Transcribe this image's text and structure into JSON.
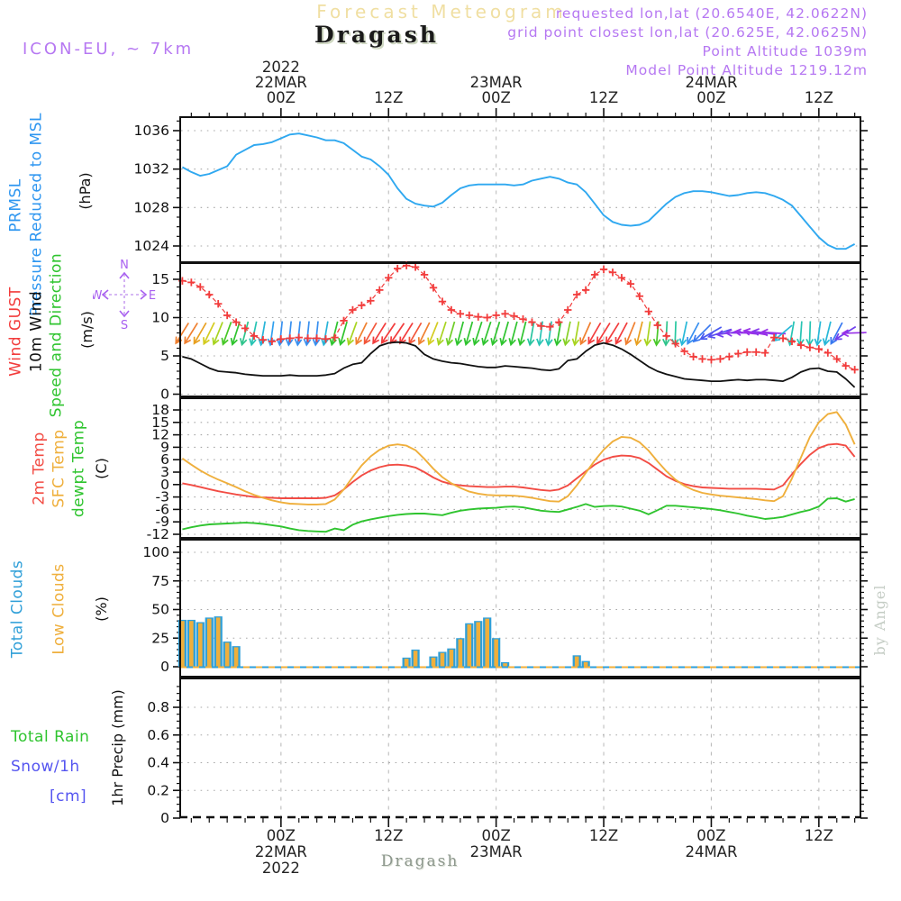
{
  "header": {
    "watermark_title": "Forecast Meteogram",
    "station": "Dragash",
    "model": "ICON-EU, ~ 7km",
    "meta_lines": [
      "requested lon,lat (20.6540E, 42.0622N)",
      "grid point closest lon,lat (20.625E, 42.0625N)",
      "Point Altitude 1039m",
      "Model Point Altitude 1219.12m"
    ]
  },
  "footer": {
    "station": "Dragash",
    "credit": "by Angel"
  },
  "compass": {
    "n": "N",
    "s": "S",
    "w": "W",
    "e": "E"
  },
  "colors": {
    "pressure_line": "#2FA8F0",
    "label_blue": "#2E96F0",
    "gust_red": "#F23C3C",
    "wind_black": "#111111",
    "direction_green": "#2FC42F",
    "temp_red": "#F24C44",
    "sfc_orange": "#EFAF3C",
    "dewpt_green": "#2FC42F",
    "cloud_blue": "#2F9FD8",
    "cloud_orange": "#EFAF3C",
    "rain_green": "#2FC42F",
    "snow_blue": "#5555F0",
    "header_purple": "#B678F2",
    "compass_purple": "#A860F0",
    "watermark_wheat": "#F0DFA2",
    "grid_gray": "#A8A8A8"
  },
  "time_axis": {
    "hours": 76,
    "minor_step_hours": 2,
    "major_ticks": [
      {
        "t": 11,
        "top": [
          "2022",
          "22MAR",
          "00Z"
        ],
        "bottom": [
          "00Z",
          "22MAR",
          "2022"
        ]
      },
      {
        "t": 23,
        "top": [
          "12Z"
        ],
        "bottom": [
          "12Z"
        ]
      },
      {
        "t": 35,
        "top": [
          "23MAR",
          "00Z"
        ],
        "bottom": [
          "00Z",
          "23MAR"
        ]
      },
      {
        "t": 47,
        "top": [
          "12Z"
        ],
        "bottom": [
          "12Z"
        ]
      },
      {
        "t": 59,
        "top": [
          "24MAR",
          "00Z"
        ],
        "bottom": [
          "00Z",
          "24MAR"
        ]
      },
      {
        "t": 71,
        "top": [
          "12Z"
        ],
        "bottom": [
          "12Z"
        ]
      }
    ]
  },
  "chart_data": [
    {
      "id": "pressure",
      "type": "line",
      "ylabel": "(hPa)",
      "left_labels": [
        {
          "text": "PRMSL",
          "color": "#2E96F0"
        },
        {
          "text": "Pressure Reduced to MSL",
          "color": "#2E96F0"
        }
      ],
      "yticks": [
        1024,
        1028,
        1032,
        1036
      ],
      "ylim": [
        1022.3,
        1037.4
      ],
      "grid": true,
      "series": [
        {
          "name": "PRMSL",
          "color": "#2FA8F0",
          "values": [
            1032.2,
            1031.7,
            1031.3,
            1031.5,
            1031.9,
            1032.3,
            1033.5,
            1034.0,
            1034.5,
            1034.6,
            1034.8,
            1035.2,
            1035.6,
            1035.7,
            1035.5,
            1035.3,
            1035.0,
            1035.0,
            1034.7,
            1034.0,
            1033.3,
            1033.0,
            1032.3,
            1031.4,
            1030.0,
            1028.9,
            1028.4,
            1028.2,
            1028.1,
            1028.5,
            1029.3,
            1030.0,
            1030.3,
            1030.4,
            1030.4,
            1030.4,
            1030.4,
            1030.3,
            1030.4,
            1030.8,
            1031.0,
            1031.2,
            1031.0,
            1030.6,
            1030.4,
            1029.6,
            1028.4,
            1027.2,
            1026.5,
            1026.2,
            1026.1,
            1026.2,
            1026.6,
            1027.5,
            1028.4,
            1029.1,
            1029.5,
            1029.7,
            1029.7,
            1029.6,
            1029.4,
            1029.2,
            1029.3,
            1029.5,
            1029.6,
            1029.5,
            1029.2,
            1028.8,
            1028.2,
            1027.1,
            1026.0,
            1024.9,
            1024.1,
            1023.7,
            1023.7,
            1024.2
          ]
        }
      ]
    },
    {
      "id": "wind",
      "type": "line-markers-arrows",
      "ylabel": "(m/s)",
      "left_labels": [
        {
          "text": "Wind GUST",
          "color": "#F23C3C"
        },
        {
          "text": "10m Wind",
          "color": "#111111"
        },
        {
          "text": "Speed and Direction",
          "color": "#2FC42F"
        }
      ],
      "yticks": [
        0,
        5,
        10,
        15
      ],
      "ylim": [
        -0.4,
        17.0
      ],
      "grid": true,
      "series": [
        {
          "name": "Wind GUST",
          "color": "#F23C3C",
          "marker": "plus",
          "values": [
            14.8,
            14.6,
            14.0,
            13.0,
            11.8,
            10.3,
            9.4,
            8.6,
            7.6,
            7.1,
            6.9,
            7.2,
            7.3,
            7.4,
            7.3,
            7.3,
            7.2,
            7.4,
            9.6,
            11.0,
            11.6,
            12.2,
            13.6,
            15.2,
            16.4,
            16.8,
            16.6,
            15.6,
            13.9,
            12.1,
            11.0,
            10.5,
            10.3,
            10.1,
            10.0,
            10.3,
            10.5,
            10.2,
            9.8,
            9.4,
            8.9,
            8.8,
            9.4,
            11.0,
            13.0,
            13.6,
            15.6,
            16.3,
            15.9,
            15.2,
            14.4,
            12.8,
            10.8,
            9.0,
            7.6,
            6.6,
            5.6,
            4.9,
            4.6,
            4.5,
            4.6,
            4.9,
            5.3,
            5.5,
            5.5,
            5.4,
            7.4,
            7.3,
            6.9,
            6.4,
            6.1,
            5.9,
            5.4,
            4.6,
            3.7,
            3.2
          ]
        },
        {
          "name": "10m Wind",
          "color": "#111111",
          "values": [
            4.9,
            4.6,
            4.0,
            3.4,
            3.0,
            2.9,
            2.8,
            2.6,
            2.5,
            2.4,
            2.4,
            2.4,
            2.5,
            2.4,
            2.4,
            2.4,
            2.5,
            2.7,
            3.4,
            3.9,
            4.1,
            5.3,
            6.3,
            6.7,
            6.8,
            6.7,
            6.3,
            5.2,
            4.6,
            4.3,
            4.1,
            4.0,
            3.8,
            3.6,
            3.5,
            3.5,
            3.7,
            3.6,
            3.5,
            3.4,
            3.2,
            3.1,
            3.3,
            4.4,
            4.6,
            5.6,
            6.4,
            6.7,
            6.4,
            5.9,
            5.2,
            4.4,
            3.6,
            3.0,
            2.6,
            2.3,
            2.0,
            1.9,
            1.8,
            1.7,
            1.7,
            1.8,
            1.9,
            1.8,
            1.9,
            1.9,
            1.8,
            1.7,
            2.2,
            2.9,
            3.3,
            3.4,
            3.0,
            2.9,
            2.0,
            0.9
          ]
        }
      ],
      "arrows": {
        "y_value": 8,
        "rot_deg": [
          32,
          32,
          30,
          26,
          22,
          20,
          18,
          15,
          12,
          10,
          8,
          6,
          6,
          6,
          6,
          6,
          10,
          14,
          16,
          20,
          26,
          30,
          32,
          34,
          34,
          32,
          30,
          26,
          22,
          18,
          16,
          15,
          16,
          18,
          18,
          17,
          16,
          15,
          14,
          10,
          8,
          8,
          10,
          12,
          10,
          24,
          30,
          32,
          32,
          28,
          22,
          14,
          8,
          5,
          3,
          2,
          12,
          28,
          45,
          60,
          72,
          82,
          90,
          96,
          100,
          98,
          94,
          50,
          10,
          4,
          2,
          8,
          14,
          28,
          58,
          88
        ],
        "colors": [
          "#F08030",
          "#F08030",
          "#E8A020",
          "#D4CC20",
          "#A8D420",
          "#48C828",
          "#2FC42F",
          "#2FC48C",
          "#28C4B4",
          "#28B4D8",
          "#30A0F0",
          "#3890F0",
          "#3890F0",
          "#3890F0",
          "#3890F0",
          "#3890F0",
          "#28B4D8",
          "#2FC42F",
          "#2FC42F",
          "#A8D420",
          "#F08030",
          "#F25438",
          "#F23C3C",
          "#F23C3C",
          "#F23C3C",
          "#F23C3C",
          "#F25438",
          "#F08030",
          "#D4CC20",
          "#A8D420",
          "#6FCE28",
          "#2FC42F",
          "#2FC42F",
          "#2FC42F",
          "#2FC42F",
          "#2FC42F",
          "#2FC42F",
          "#2FC42F",
          "#2FC42F",
          "#28C4A0",
          "#28C4B4",
          "#28C4B4",
          "#2FC42F",
          "#86D024",
          "#A8D420",
          "#F08030",
          "#F23C3C",
          "#F23C3C",
          "#F23C3C",
          "#F23C3C",
          "#F08030",
          "#E8A020",
          "#A8D420",
          "#48C828",
          "#2FC48C",
          "#28C8A0",
          "#28B8D8",
          "#3890F0",
          "#3878F0",
          "#4858F0",
          "#5850F0",
          "#7040EE",
          "#8838EC",
          "#9830E8",
          "#9830E8",
          "#8838EC",
          "#9830E8",
          "#28B8D8",
          "#28C4B4",
          "#28C4B4",
          "#28C4B4",
          "#28B8D8",
          "#28B8D8",
          "#3878F0",
          "#7040EE",
          "#9830E8"
        ]
      }
    },
    {
      "id": "temperature",
      "type": "line",
      "ylabel": "(C)",
      "left_labels": [
        {
          "text": "2m Temp",
          "color": "#F24C44"
        },
        {
          "text": "SFC Temp",
          "color": "#EFAF3C"
        },
        {
          "text": "dewpt Temp",
          "color": "#2FC42F"
        }
      ],
      "yticks": [
        -12,
        -9,
        -6,
        -3,
        0,
        3,
        6,
        9,
        12,
        15,
        18
      ],
      "ylim": [
        -13.1,
        20.6
      ],
      "grid": true,
      "series": [
        {
          "name": "2m Temp",
          "color": "#F24C44",
          "values": [
            0.3,
            -0.1,
            -0.6,
            -1.1,
            -1.6,
            -2.0,
            -2.4,
            -2.7,
            -3.0,
            -3.1,
            -3.2,
            -3.3,
            -3.3,
            -3.3,
            -3.3,
            -3.3,
            -3.2,
            -2.6,
            -1.2,
            0.6,
            2.2,
            3.4,
            4.2,
            4.7,
            4.8,
            4.6,
            4.1,
            3.0,
            1.7,
            0.7,
            0.1,
            -0.2,
            -0.4,
            -0.5,
            -0.6,
            -0.6,
            -0.5,
            -0.5,
            -0.7,
            -1.0,
            -1.3,
            -1.5,
            -1.2,
            -0.2,
            1.5,
            3.2,
            4.8,
            6.0,
            6.7,
            7.0,
            6.9,
            6.4,
            5.2,
            3.6,
            2.0,
            0.9,
            0.1,
            -0.4,
            -0.7,
            -0.8,
            -0.9,
            -1.0,
            -1.0,
            -1.0,
            -1.0,
            -1.1,
            -1.2,
            -0.2,
            2.5,
            5.0,
            7.2,
            8.8,
            9.6,
            9.8,
            9.4,
            6.7
          ]
        },
        {
          "name": "SFC Temp",
          "color": "#EFAF3C",
          "values": [
            6.3,
            4.8,
            3.4,
            2.2,
            1.2,
            0.3,
            -0.6,
            -1.6,
            -2.5,
            -3.2,
            -3.8,
            -4.3,
            -4.6,
            -4.7,
            -4.8,
            -4.8,
            -4.7,
            -3.6,
            -1.2,
            1.8,
            4.6,
            6.8,
            8.4,
            9.4,
            9.7,
            9.4,
            8.3,
            6.2,
            3.8,
            1.8,
            0.3,
            -0.8,
            -1.7,
            -2.2,
            -2.5,
            -2.6,
            -2.6,
            -2.7,
            -2.9,
            -3.2,
            -3.6,
            -4.0,
            -4.1,
            -2.8,
            -0.2,
            2.8,
            5.8,
            8.4,
            10.4,
            11.5,
            11.3,
            10.2,
            8.2,
            5.6,
            3.2,
            1.2,
            -0.3,
            -1.3,
            -2.0,
            -2.4,
            -2.7,
            -2.9,
            -3.1,
            -3.3,
            -3.5,
            -3.8,
            -4.0,
            -2.8,
            1.5,
            6.5,
            11.5,
            15.0,
            17.0,
            17.5,
            14.5,
            9.7
          ]
        },
        {
          "name": "dewpt Temp",
          "color": "#2FC42F",
          "values": [
            -10.8,
            -10.3,
            -9.9,
            -9.6,
            -9.5,
            -9.4,
            -9.3,
            -9.2,
            -9.3,
            -9.5,
            -9.8,
            -10.1,
            -10.6,
            -11.0,
            -11.2,
            -11.3,
            -11.4,
            -10.6,
            -11.0,
            -9.7,
            -8.9,
            -8.4,
            -8.0,
            -7.6,
            -7.3,
            -7.1,
            -7.0,
            -7.0,
            -7.2,
            -7.4,
            -6.8,
            -6.3,
            -6.0,
            -5.8,
            -5.7,
            -5.6,
            -5.4,
            -5.3,
            -5.5,
            -5.9,
            -6.3,
            -6.5,
            -6.6,
            -6.0,
            -5.4,
            -4.7,
            -5.4,
            -5.2,
            -5.1,
            -5.3,
            -5.8,
            -6.3,
            -7.2,
            -6.2,
            -5.1,
            -5.1,
            -5.3,
            -5.5,
            -5.7,
            -5.9,
            -6.2,
            -6.6,
            -7.0,
            -7.5,
            -7.9,
            -8.3,
            -8.1,
            -7.8,
            -7.2,
            -6.6,
            -6.1,
            -5.3,
            -3.4,
            -3.3,
            -4.1,
            -3.5
          ]
        }
      ]
    },
    {
      "id": "clouds",
      "type": "bar",
      "ylabel": "(%)",
      "left_labels": [
        {
          "text": "Total Clouds",
          "color": "#2F9FD8"
        },
        {
          "text": "Low Clouds",
          "color": "#EFAF3C"
        }
      ],
      "yticks": [
        0,
        25,
        50,
        75,
        100
      ],
      "ylim": [
        -9.5,
        110
      ],
      "grid": true,
      "series": [
        {
          "name": "Total Clouds",
          "color": "#2F9FD8",
          "values": [
            41,
            41,
            39,
            43,
            44,
            22,
            18,
            0,
            0,
            0,
            0,
            0,
            0,
            0,
            0,
            0,
            0,
            0,
            0,
            0,
            0,
            0,
            0,
            0,
            0,
            8,
            15,
            0,
            9,
            13,
            16,
            25,
            38,
            40,
            43,
            25,
            4,
            0,
            0,
            0,
            0,
            0,
            0,
            0,
            10,
            5,
            0,
            0,
            0,
            0,
            0,
            0,
            0,
            0,
            0,
            0,
            0,
            0,
            0,
            0,
            0,
            0,
            0,
            0,
            0,
            0,
            0,
            0,
            0,
            0,
            0,
            0,
            0,
            0,
            0,
            0
          ]
        },
        {
          "name": "Low Clouds",
          "color": "#EFAF3C",
          "values": [
            40,
            40,
            38,
            42,
            43,
            21,
            17,
            0,
            0,
            0,
            0,
            0,
            0,
            0,
            0,
            0,
            0,
            0,
            0,
            0,
            0,
            0,
            0,
            0,
            0,
            7,
            14,
            0,
            8,
            12,
            15,
            24,
            37,
            39,
            42,
            24,
            3,
            0,
            0,
            0,
            0,
            0,
            0,
            0,
            9,
            4,
            0,
            0,
            0,
            0,
            0,
            0,
            0,
            0,
            0,
            0,
            0,
            0,
            0,
            0,
            0,
            0,
            0,
            0,
            0,
            0,
            0,
            0,
            0,
            0,
            0,
            0,
            0,
            0,
            0,
            0
          ]
        }
      ],
      "zero_line": {
        "style": "dashed",
        "colors": [
          "#EFAF3C",
          "#2F9FD8"
        ]
      }
    },
    {
      "id": "precipitation",
      "type": "bar",
      "ylabel": "1hr Precip (mm)",
      "left_labels": [
        {
          "text": "Total  Rain",
          "color": "#2FC42F"
        },
        {
          "text": "Snow/1h",
          "color": "#5555F0"
        },
        {
          "text": "[cm]",
          "color": "#5555F0"
        }
      ],
      "yticks": [
        0,
        0.2,
        0.4,
        0.6,
        0.8
      ],
      "ylim": [
        0,
        0.99
      ],
      "grid": true,
      "series": [
        {
          "name": "1hr Precip",
          "color": "#2FC42F",
          "values": []
        }
      ],
      "note": "no precipitation in forecast period; zero baseline drawn as dashed black axis"
    }
  ]
}
